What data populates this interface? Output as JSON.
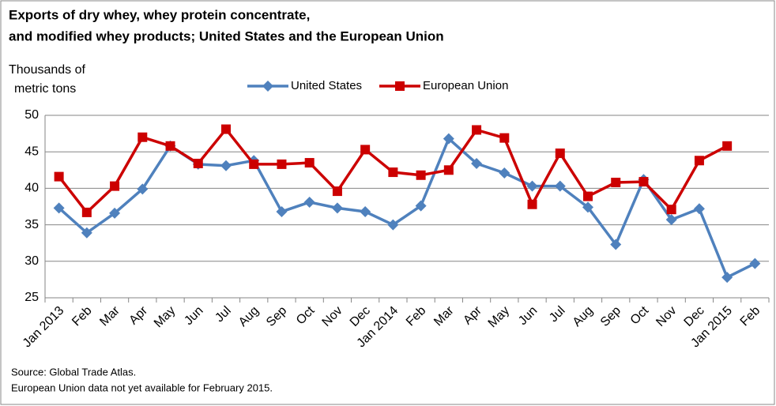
{
  "chart_data": {
    "type": "line",
    "title": [
      "Exports of dry whey, whey protein concentrate,",
      "and modified whey products; United States and the European Union"
    ],
    "ylabel": [
      "Thousands of",
      "metric tons"
    ],
    "categories": [
      "Jan 2013",
      "Feb",
      "Mar",
      "Apr",
      "May",
      "Jun",
      "Jul",
      "Aug",
      "Sep",
      "Oct",
      "Nov",
      "Dec",
      "Jan 2014",
      "Feb",
      "Mar",
      "Apr",
      "May",
      "Jun",
      "Jul",
      "Aug",
      "Sep",
      "Oct",
      "Nov",
      "Dec",
      "Jan 2015",
      "Feb"
    ],
    "series": [
      {
        "name": "United States",
        "color": "#4f81bd",
        "marker": "diamond",
        "values": [
          37.3,
          33.9,
          36.6,
          39.9,
          45.8,
          43.3,
          43.1,
          43.8,
          36.8,
          38.1,
          37.3,
          36.8,
          35.0,
          37.6,
          46.8,
          43.4,
          42.1,
          40.3,
          40.3,
          37.4,
          32.3,
          41.2,
          35.7,
          37.2,
          27.8,
          29.7
        ]
      },
      {
        "name": "European Union",
        "color": "#cc0000",
        "marker": "square",
        "values": [
          41.6,
          36.7,
          40.3,
          47.0,
          45.8,
          43.4,
          48.1,
          43.3,
          43.3,
          43.5,
          39.6,
          45.3,
          42.2,
          41.8,
          42.5,
          48.0,
          46.9,
          37.8,
          44.8,
          38.9,
          40.8,
          40.9,
          37.1,
          43.8,
          45.8,
          null
        ]
      }
    ],
    "ylim": [
      25,
      50
    ],
    "yticks": [
      25,
      30,
      35,
      40,
      45,
      50
    ],
    "grid": true,
    "legend": "top",
    "notes": [
      "Source: Global Trade Atlas.",
      "European Union data not yet available for February 2015."
    ]
  }
}
